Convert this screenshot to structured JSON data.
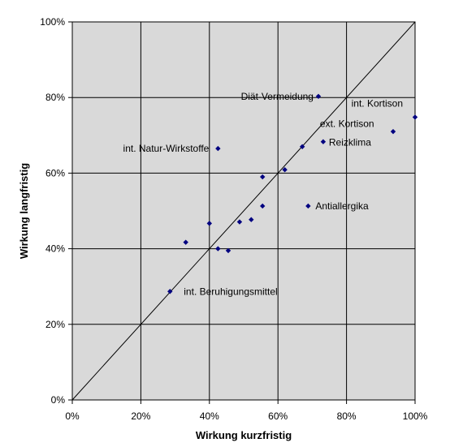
{
  "chart_data": {
    "type": "scatter",
    "title": "",
    "xlabel": "Wirkung kurzfristig",
    "ylabel": "Wirkung langfristig",
    "xlim": [
      0,
      100
    ],
    "ylim": [
      0,
      100
    ],
    "x_ticks": [
      "0%",
      "20%",
      "40%",
      "60%",
      "80%",
      "100%"
    ],
    "y_ticks": [
      "0%",
      "20%",
      "40%",
      "60%",
      "80%",
      "100%"
    ],
    "grid": true,
    "diagonal_reference_line": true,
    "plot_background": "#d9d9d9",
    "marker_color": "#000080",
    "points": [
      {
        "x": 28.5,
        "y": 28.7
      },
      {
        "x": 33.1,
        "y": 41.7
      },
      {
        "x": 40.0,
        "y": 46.7
      },
      {
        "x": 42.5,
        "y": 40.0
      },
      {
        "x": 45.5,
        "y": 39.5
      },
      {
        "x": 48.8,
        "y": 47.1
      },
      {
        "x": 52.2,
        "y": 47.7
      },
      {
        "x": 55.5,
        "y": 51.3
      },
      {
        "x": 55.5,
        "y": 59.0
      },
      {
        "x": 62.0,
        "y": 60.9
      },
      {
        "x": 42.5,
        "y": 66.5
      },
      {
        "x": 67.1,
        "y": 67.0
      },
      {
        "x": 71.8,
        "y": 80.3
      },
      {
        "x": 73.2,
        "y": 68.3
      },
      {
        "x": 68.8,
        "y": 51.3
      },
      {
        "x": 93.6,
        "y": 71.0
      },
      {
        "x": 100.0,
        "y": 74.8
      }
    ],
    "annotations": [
      {
        "text": "Diät-Vermeidung",
        "x": 71.8,
        "y": 80.3,
        "anchor": "end"
      },
      {
        "text": "int. Kortison",
        "x": 100.0,
        "y": 74.8,
        "anchor": "end"
      },
      {
        "text": "ext. Kortison",
        "x": 73.2,
        "y": 68.3,
        "anchor": "start"
      },
      {
        "text": "Reizklima",
        "x": 73.2,
        "y": 68.3,
        "anchor": "start"
      },
      {
        "text": "int. Natur-Wirkstoffe",
        "x": 42.5,
        "y": 66.5,
        "anchor": "end"
      },
      {
        "text": "Antiallergika",
        "x": 68.8,
        "y": 51.3,
        "anchor": "start"
      },
      {
        "text": "int. Beruhigungsmittel",
        "x": 28.5,
        "y": 28.7,
        "anchor": "start"
      }
    ]
  }
}
